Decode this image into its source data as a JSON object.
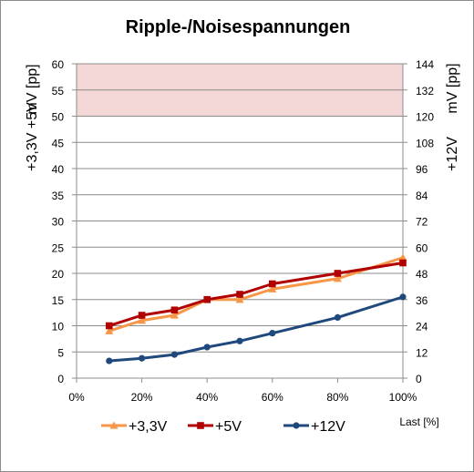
{
  "chart_data": {
    "type": "line",
    "title": "Ripple-/Noisespannungen",
    "xlabel": "Last [%]",
    "ylabel_left_series": "+3,3V +5V",
    "ylabel_left_unit": "mV [pp]",
    "ylabel_right_series": "+12V",
    "ylabel_right_unit": "mV [pp]",
    "xlim": [
      0,
      100
    ],
    "ylim_left": [
      0,
      60
    ],
    "ylim_right": [
      0,
      144
    ],
    "x_ticks": [
      "0%",
      "20%",
      "40%",
      "60%",
      "80%",
      "100%"
    ],
    "x_tick_values": [
      0,
      20,
      40,
      60,
      80,
      100
    ],
    "y_left_ticks": [
      "0",
      "5",
      "10",
      "15",
      "20",
      "25",
      "30",
      "35",
      "40",
      "45",
      "50",
      "55",
      "60"
    ],
    "y_left_tick_values": [
      0,
      5,
      10,
      15,
      20,
      25,
      30,
      35,
      40,
      45,
      50,
      55,
      60
    ],
    "y_right_ticks": [
      "0",
      "12",
      "24",
      "36",
      "48",
      "60",
      "72",
      "84",
      "96",
      "108",
      "120",
      "132",
      "144"
    ],
    "y_right_tick_values": [
      0,
      12,
      24,
      36,
      48,
      60,
      72,
      84,
      96,
      108,
      120,
      132,
      144
    ],
    "limit_band_left": [
      50,
      60
    ],
    "limit_band_color": "#f4d7d7",
    "grid": true,
    "legend_position": "bottom",
    "series": [
      {
        "name": "+3,3V",
        "axis": "left",
        "color": "#f79646",
        "marker": "triangle",
        "x": [
          10,
          20,
          30,
          40,
          50,
          60,
          80,
          100
        ],
        "y": [
          9,
          11,
          12,
          15,
          15,
          17,
          19,
          23
        ]
      },
      {
        "name": "+5V",
        "axis": "left",
        "color": "#b00000",
        "marker": "square",
        "x": [
          10,
          20,
          30,
          40,
          50,
          60,
          80,
          100
        ],
        "y": [
          10,
          12,
          13,
          15,
          16,
          18,
          20,
          22
        ]
      },
      {
        "name": "+12V",
        "axis": "right",
        "color": "#1f497d",
        "marker": "circle",
        "x": [
          10,
          20,
          30,
          40,
          50,
          60,
          80,
          100
        ],
        "y": [
          7.9,
          9.1,
          10.8,
          14.2,
          17.0,
          20.6,
          27.8,
          37.2
        ]
      }
    ]
  }
}
